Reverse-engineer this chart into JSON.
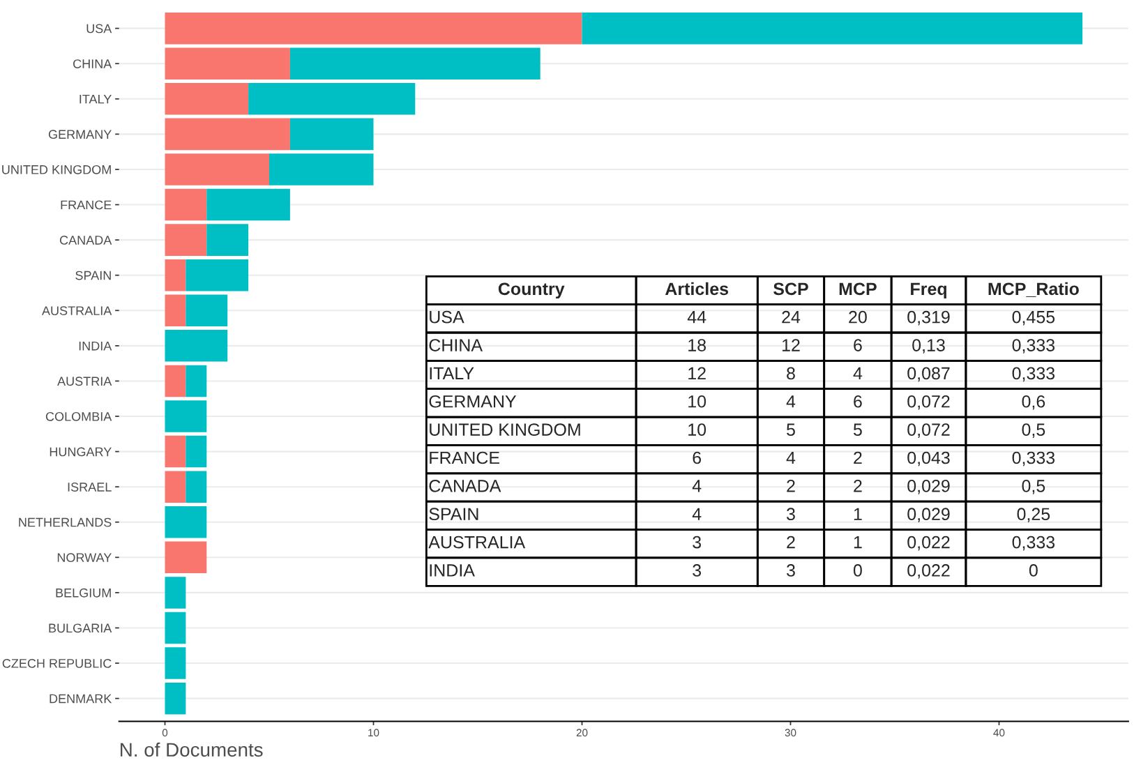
{
  "chart_data": [
    {
      "type": "bar",
      "orientation": "horizontal",
      "stacked": true,
      "xlabel": "N. of Documents",
      "categories": [
        "USA",
        "CHINA",
        "ITALY",
        "GERMANY",
        "UNITED KINGDOM",
        "FRANCE",
        "CANADA",
        "SPAIN",
        "AUSTRALIA",
        "INDIA",
        "AUSTRIA",
        "COLOMBIA",
        "HUNGARY",
        "ISRAEL",
        "NETHERLANDS",
        "NORWAY",
        "BELGIUM",
        "BULGARIA",
        "CZECH REPUBLIC",
        "DENMARK"
      ],
      "series": [
        {
          "color": "#f8766d",
          "values": [
            20,
            6,
            4,
            6,
            5,
            2,
            2,
            1,
            1,
            0,
            1,
            0,
            1,
            1,
            0,
            2,
            0,
            0,
            0,
            0
          ]
        },
        {
          "color": "#00bfc4",
          "values": [
            24,
            12,
            8,
            4,
            5,
            4,
            2,
            3,
            2,
            3,
            1,
            2,
            1,
            1,
            2,
            0,
            1,
            1,
            1,
            1
          ]
        }
      ],
      "xlim": [
        -2.2,
        46.2
      ],
      "xticks": [
        0,
        10,
        20,
        30,
        40
      ],
      "grid": "y"
    },
    {
      "type": "other",
      "categories": [
        "Country",
        "Articles",
        "SCP",
        "MCP",
        "Freq",
        "MCP_Ratio"
      ],
      "y_categories": [
        "USA",
        "CHINA",
        "ITALY",
        "GERMANY",
        "UNITED KINGDOM",
        "FRANCE",
        "CANADA",
        "SPAIN",
        "AUSTRALIA",
        "INDIA"
      ],
      "cell_labels": [
        [
          "44",
          "24",
          "20",
          "0,319",
          "0,455"
        ],
        [
          "18",
          "12",
          "6",
          "0,13",
          "0,333"
        ],
        [
          "12",
          "8",
          "4",
          "0,087",
          "0,333"
        ],
        [
          "10",
          "4",
          "6",
          "0,072",
          "0,6"
        ],
        [
          "10",
          "5",
          "5",
          "0,072",
          "0,5"
        ],
        [
          "6",
          "4",
          "2",
          "0,043",
          "0,333"
        ],
        [
          "4",
          "2",
          "2",
          "0,029",
          "0,5"
        ],
        [
          "4",
          "3",
          "1",
          "0,029",
          "0,25"
        ],
        [
          "3",
          "2",
          "1",
          "0,022",
          "0,333"
        ],
        [
          "3",
          "3",
          "0",
          "0,022",
          "0"
        ]
      ]
    }
  ]
}
